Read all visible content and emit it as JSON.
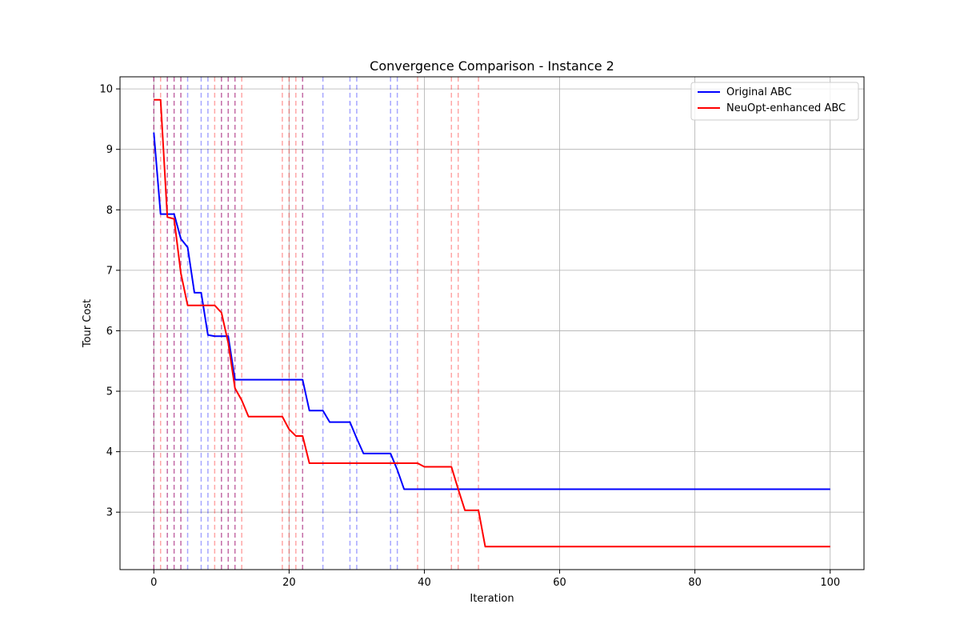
{
  "chart_data": {
    "type": "line",
    "title": "Convergence Comparison - Instance 2",
    "xlabel": "Iteration",
    "ylabel": "Tour Cost",
    "xlim": [
      -5,
      105
    ],
    "ylim": [
      2.05,
      10.2
    ],
    "xticks": [
      0,
      20,
      40,
      60,
      80,
      100
    ],
    "yticks": [
      3,
      4,
      5,
      6,
      7,
      8,
      9,
      10
    ],
    "grid": true,
    "legend_position": "top-right",
    "series": [
      {
        "name": "Original ABC",
        "color": "#0000ff",
        "x": [
          0,
          1,
          2,
          3,
          4,
          5,
          6,
          7,
          8,
          9,
          10,
          11,
          12,
          13,
          19,
          20,
          21,
          22,
          23,
          24,
          25,
          26,
          27,
          28,
          29,
          30,
          31,
          32,
          33,
          34,
          35,
          36,
          37,
          100
        ],
        "y": [
          9.28,
          7.93,
          7.93,
          7.93,
          7.52,
          7.38,
          6.63,
          6.63,
          5.93,
          5.91,
          5.91,
          5.91,
          5.19,
          5.19,
          5.19,
          5.19,
          5.19,
          5.19,
          4.68,
          4.68,
          4.68,
          4.49,
          4.49,
          4.49,
          4.49,
          4.22,
          3.97,
          3.97,
          3.97,
          3.97,
          3.97,
          3.7,
          3.38,
          3.38
        ]
      },
      {
        "name": "NeuOpt-enhanced ABC",
        "color": "#ff0000",
        "x": [
          0,
          1,
          2,
          3,
          4,
          5,
          9,
          10,
          11,
          12,
          13,
          14,
          19,
          20,
          21,
          22,
          23,
          38,
          39,
          40,
          44,
          45,
          46,
          48,
          49,
          100
        ],
        "y": [
          9.82,
          9.82,
          7.88,
          7.85,
          6.95,
          6.42,
          6.42,
          6.3,
          5.8,
          5.05,
          4.85,
          4.58,
          4.58,
          4.37,
          4.26,
          4.26,
          3.81,
          3.81,
          3.81,
          3.75,
          3.75,
          3.38,
          3.03,
          3.03,
          2.43,
          2.43
        ]
      }
    ],
    "vlines": [
      {
        "series": "Original ABC",
        "color": "#0000ff",
        "x": [
          0,
          2,
          3,
          4,
          5,
          7,
          8,
          10,
          11,
          12,
          22,
          25,
          29,
          30,
          35,
          36
        ]
      },
      {
        "series": "NeuOpt-enhanced ABC",
        "color": "#ff0000",
        "x": [
          0,
          1,
          2,
          3,
          4,
          9,
          10,
          11,
          12,
          13,
          19,
          20,
          21,
          22,
          39,
          44,
          45,
          48
        ]
      }
    ]
  }
}
